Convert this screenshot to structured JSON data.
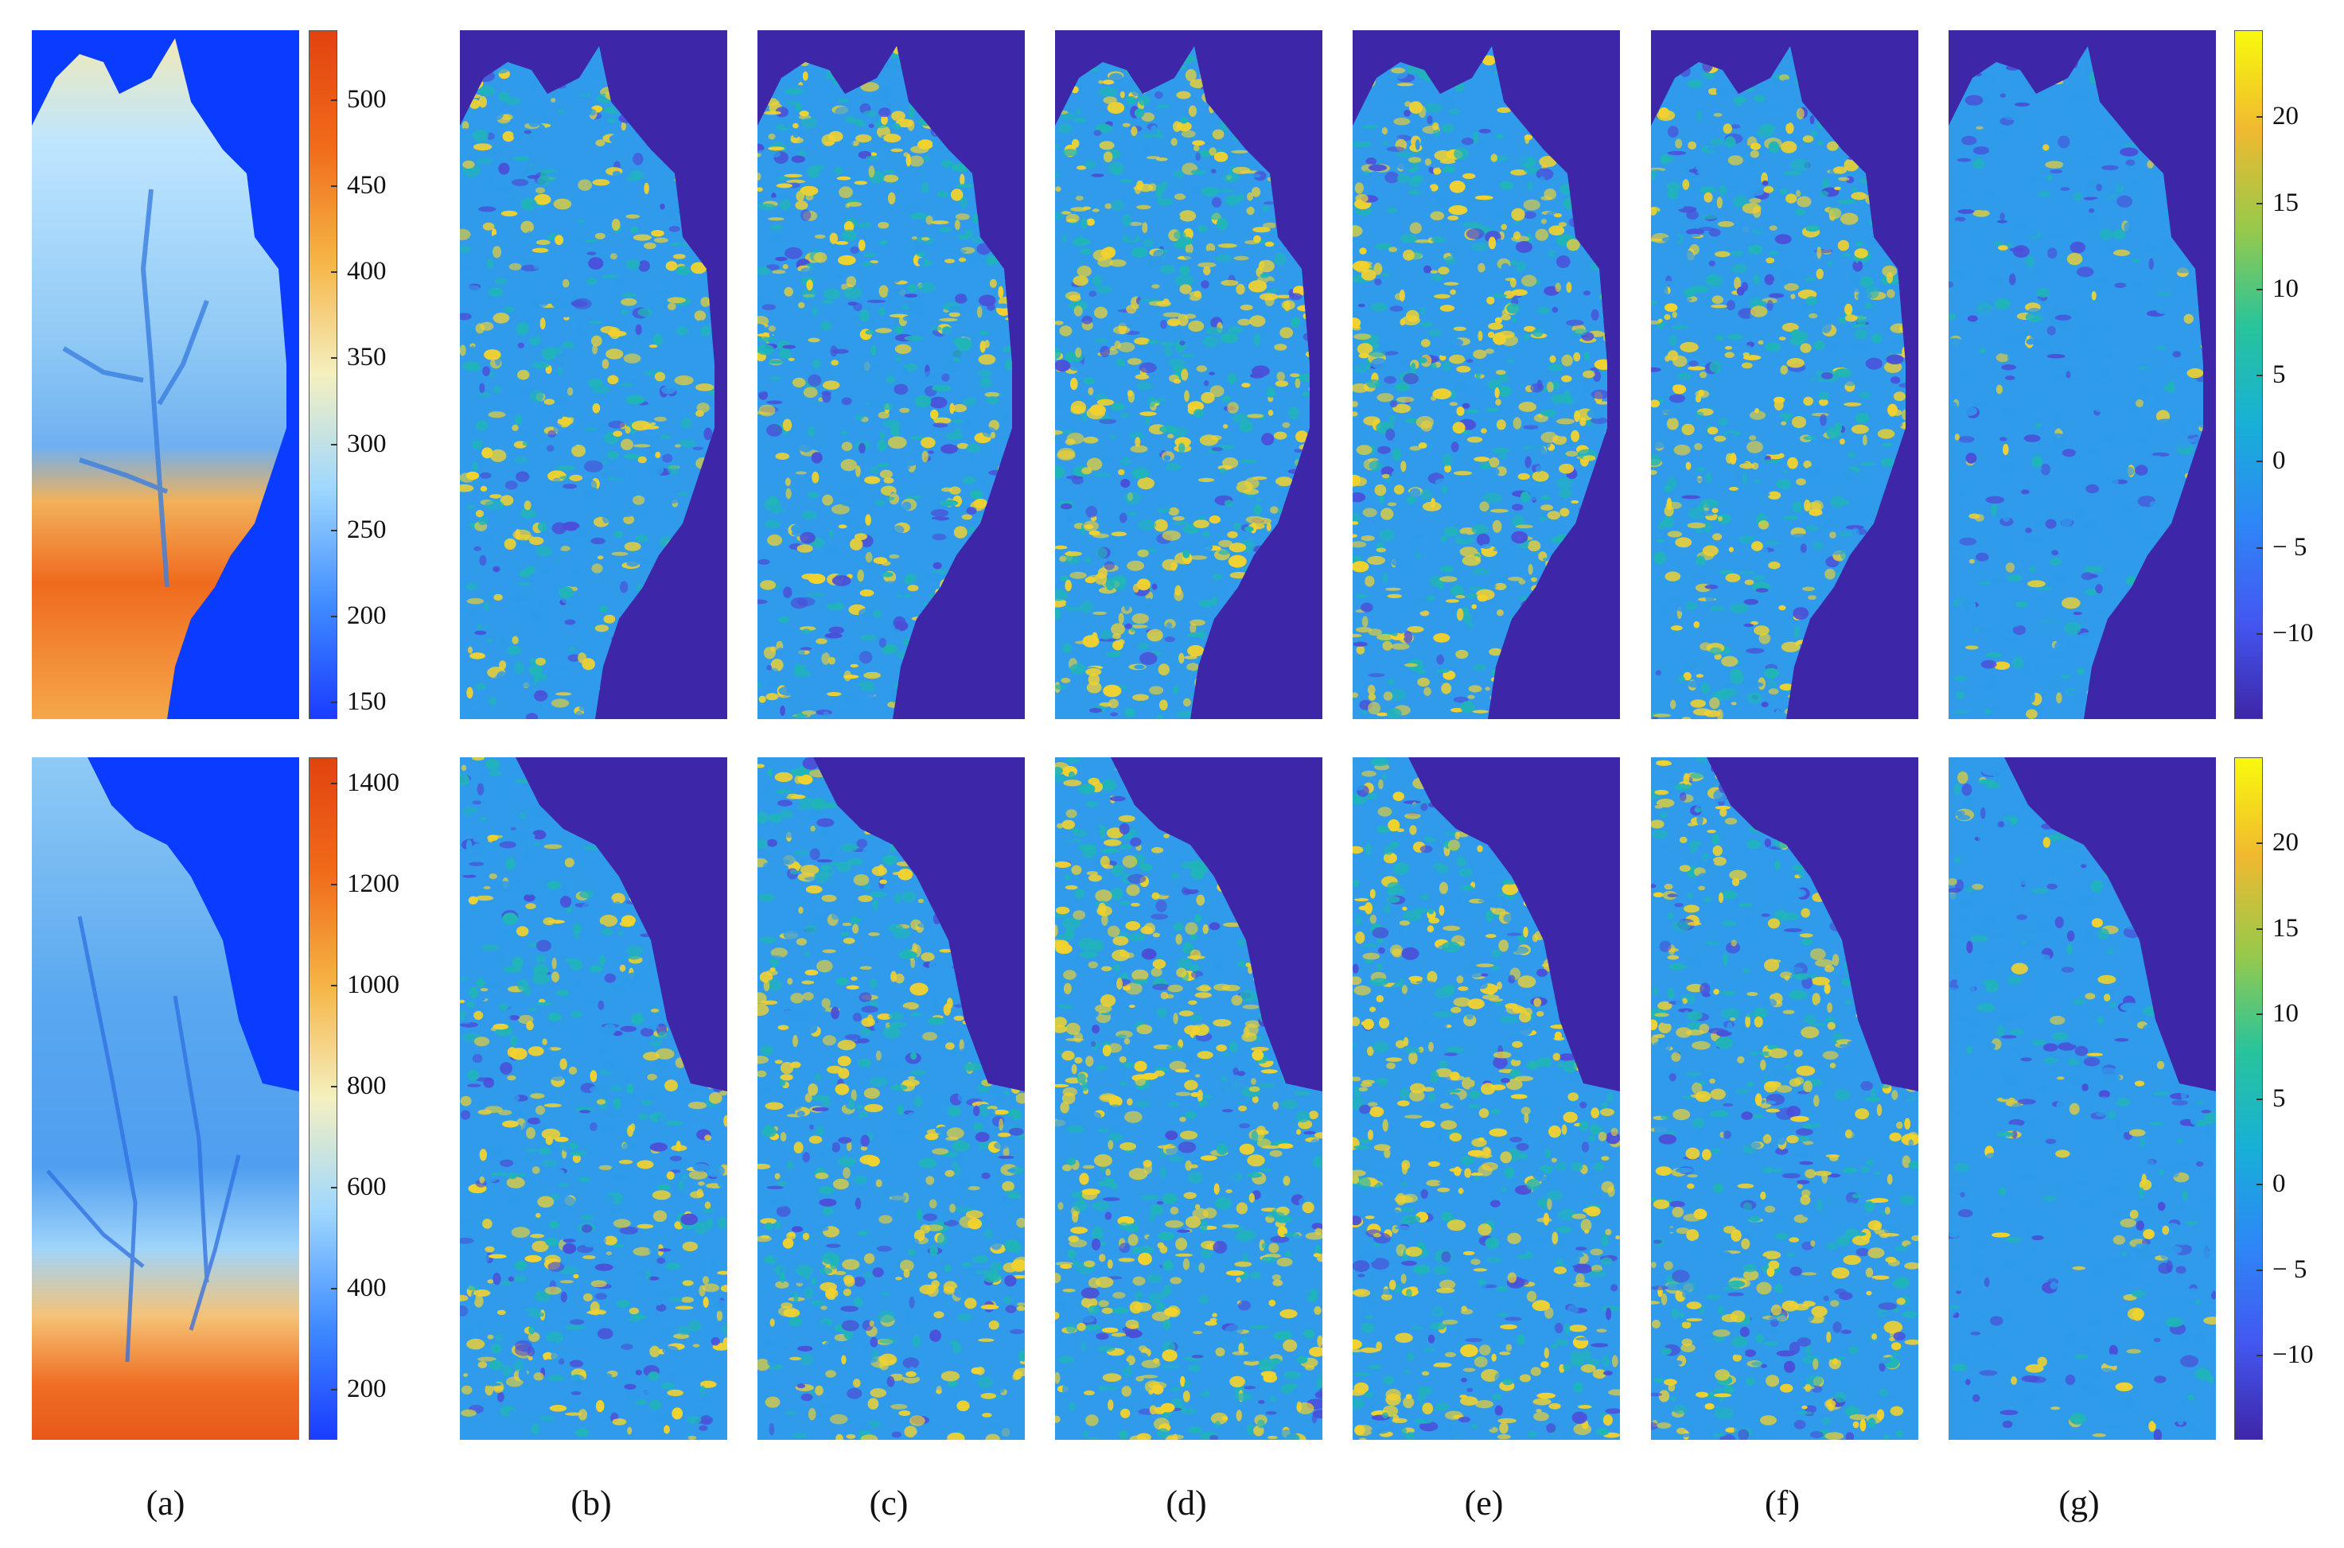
{
  "captions": [
    "(a)",
    "(b)",
    "(c)",
    "(d)",
    "(e)",
    "(f)",
    "(g)"
  ],
  "colorbars": {
    "top_elevation": {
      "ticks": [
        "500",
        "450",
        "400",
        "350",
        "300",
        "250",
        "200",
        "150"
      ],
      "min": 140,
      "max": 540,
      "colors": [
        "#1a3cff",
        "#3f8cff",
        "#9ed7ff",
        "#f4f0c0",
        "#f6b445",
        "#f06a1a",
        "#e2430f"
      ]
    },
    "bottom_elevation": {
      "ticks": [
        "1400",
        "1200",
        "1000",
        "800",
        "600",
        "400",
        "200"
      ],
      "min": 100,
      "max": 1450,
      "colors": [
        "#1a3cff",
        "#3f8cff",
        "#9ed7ff",
        "#f4f0c0",
        "#f6b445",
        "#f06a1a",
        "#e2430f"
      ]
    },
    "top_error": {
      "ticks": [
        "20",
        "15",
        "10",
        "5",
        "0",
        "− 5",
        "−10"
      ],
      "min": -15,
      "max": 25,
      "colors": [
        "#3e26a8",
        "#4358f2",
        "#2e87f7",
        "#17b0d6",
        "#28c49a",
        "#99c94a",
        "#f0b92f",
        "#f8fa0d"
      ]
    },
    "bottom_error": {
      "ticks": [
        "20",
        "15",
        "10",
        "5",
        "0",
        "− 5",
        "−10"
      ],
      "min": -15,
      "max": 25,
      "colors": [
        "#3e26a8",
        "#4358f2",
        "#2e87f7",
        "#17b0d6",
        "#28c49a",
        "#99c94a",
        "#f0b92f",
        "#f8fa0d"
      ]
    }
  },
  "colors": {
    "dem_background": "#0a3cff",
    "error_background": "#3d26a8",
    "error_base": "#2f9bea",
    "error_high": "#f2d22e",
    "error_mid": "#20b5b8",
    "error_low": "#4a4fd8"
  }
}
